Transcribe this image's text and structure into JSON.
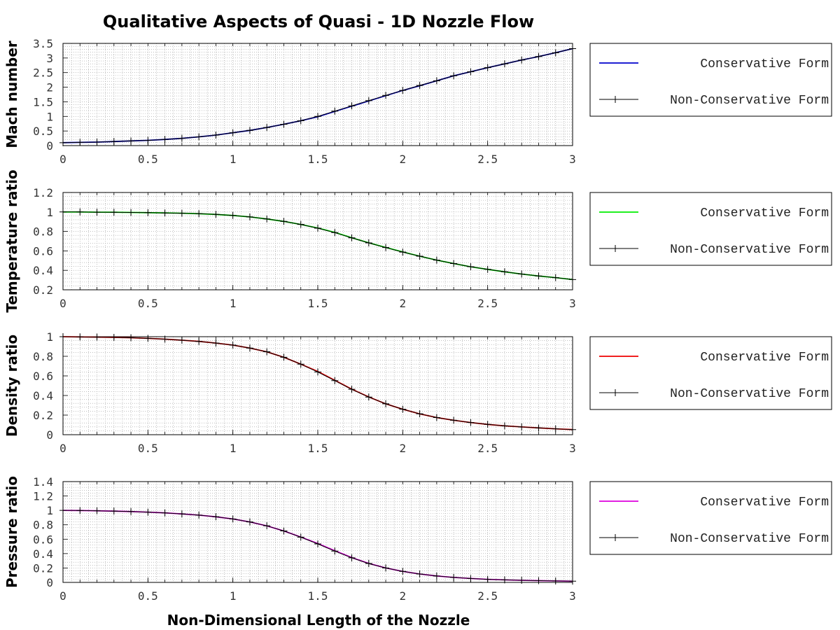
{
  "title": "Qualitative Aspects of Quasi - 1D Nozzle Flow",
  "xlabel": "Non-Dimensional Length of the Nozzle",
  "chart_data": [
    {
      "type": "line",
      "ylabel": "Mach number",
      "xlim": [
        0,
        3
      ],
      "ylim": [
        0,
        3.5
      ],
      "x_ticks": [
        "0",
        "0.5",
        "1",
        "1.5",
        "2",
        "2.5",
        "3"
      ],
      "y_ticks": [
        "0",
        "0.5",
        "1",
        "1.5",
        "2",
        "2.5",
        "3",
        "3.5"
      ],
      "grid": true,
      "legend_position": "right",
      "x": [
        0,
        0.1,
        0.2,
        0.3,
        0.4,
        0.5,
        0.6,
        0.7,
        0.8,
        0.9,
        1.0,
        1.1,
        1.2,
        1.3,
        1.4,
        1.5,
        1.6,
        1.7,
        1.8,
        1.9,
        2.0,
        2.1,
        2.2,
        2.3,
        2.4,
        2.5,
        2.6,
        2.7,
        2.8,
        2.9,
        3.0
      ],
      "series": [
        {
          "name": "Conservative Form",
          "color": "#0000cc",
          "marker": "none",
          "values": [
            0.1,
            0.11,
            0.12,
            0.14,
            0.16,
            0.18,
            0.21,
            0.25,
            0.3,
            0.36,
            0.44,
            0.52,
            0.62,
            0.73,
            0.85,
            0.99,
            1.17,
            1.35,
            1.53,
            1.71,
            1.89,
            2.05,
            2.22,
            2.39,
            2.53,
            2.67,
            2.8,
            2.93,
            3.05,
            3.18,
            3.32
          ]
        },
        {
          "name": "Non-Conservative Form",
          "color": "#000000",
          "marker": "plus",
          "values": [
            0.1,
            0.11,
            0.12,
            0.14,
            0.16,
            0.18,
            0.21,
            0.25,
            0.3,
            0.36,
            0.44,
            0.52,
            0.62,
            0.73,
            0.85,
            1.0,
            1.18,
            1.36,
            1.54,
            1.72,
            1.89,
            2.06,
            2.22,
            2.39,
            2.53,
            2.67,
            2.8,
            2.93,
            3.05,
            3.18,
            3.32
          ]
        }
      ]
    },
    {
      "type": "line",
      "ylabel": "Temperature ratio",
      "xlim": [
        0,
        3
      ],
      "ylim": [
        0.2,
        1.2
      ],
      "x_ticks": [
        "0",
        "0.5",
        "1",
        "1.5",
        "2",
        "2.5",
        "3"
      ],
      "y_ticks": [
        "0.2",
        "0.4",
        "0.6",
        "0.8",
        "1",
        "1.2"
      ],
      "grid": true,
      "legend_position": "right",
      "x": [
        0,
        0.1,
        0.2,
        0.3,
        0.4,
        0.5,
        0.6,
        0.7,
        0.8,
        0.9,
        1.0,
        1.1,
        1.2,
        1.3,
        1.4,
        1.5,
        1.6,
        1.7,
        1.8,
        1.9,
        2.0,
        2.1,
        2.2,
        2.3,
        2.4,
        2.5,
        2.6,
        2.7,
        2.8,
        2.9,
        3.0
      ],
      "series": [
        {
          "name": "Conservative Form",
          "color": "#00ee00",
          "marker": "none",
          "values": [
            1.0,
            1.0,
            0.998,
            0.997,
            0.995,
            0.993,
            0.99,
            0.987,
            0.982,
            0.975,
            0.964,
            0.949,
            0.928,
            0.903,
            0.872,
            0.835,
            0.79,
            0.735,
            0.683,
            0.635,
            0.589,
            0.545,
            0.505,
            0.47,
            0.437,
            0.41,
            0.385,
            0.362,
            0.342,
            0.325,
            0.305
          ]
        },
        {
          "name": "Non-Conservative Form",
          "color": "#000000",
          "marker": "plus",
          "values": [
            1.0,
            1.0,
            0.998,
            0.997,
            0.995,
            0.993,
            0.99,
            0.987,
            0.982,
            0.975,
            0.964,
            0.949,
            0.928,
            0.903,
            0.872,
            0.833,
            0.788,
            0.734,
            0.682,
            0.634,
            0.588,
            0.545,
            0.505,
            0.47,
            0.437,
            0.41,
            0.385,
            0.362,
            0.342,
            0.325,
            0.305
          ]
        }
      ]
    },
    {
      "type": "line",
      "ylabel": "Density ratio",
      "xlim": [
        0,
        3
      ],
      "ylim": [
        0,
        1
      ],
      "x_ticks": [
        "0",
        "0.5",
        "1",
        "1.5",
        "2",
        "2.5",
        "3"
      ],
      "y_ticks": [
        "0",
        "0.2",
        "0.4",
        "0.6",
        "0.8",
        "1"
      ],
      "grid": true,
      "legend_position": "right",
      "x": [
        0,
        0.1,
        0.2,
        0.3,
        0.4,
        0.5,
        0.6,
        0.7,
        0.8,
        0.9,
        1.0,
        1.1,
        1.2,
        1.3,
        1.4,
        1.5,
        1.6,
        1.7,
        1.8,
        1.9,
        2.0,
        2.1,
        2.2,
        2.3,
        2.4,
        2.5,
        2.6,
        2.7,
        2.8,
        2.9,
        3.0
      ],
      "series": [
        {
          "name": "Conservative Form",
          "color": "#ee0000",
          "marker": "none",
          "values": [
            1.0,
            0.998,
            0.996,
            0.993,
            0.989,
            0.983,
            0.975,
            0.964,
            0.952,
            0.935,
            0.914,
            0.884,
            0.846,
            0.79,
            0.72,
            0.645,
            0.555,
            0.465,
            0.385,
            0.315,
            0.26,
            0.213,
            0.175,
            0.147,
            0.124,
            0.105,
            0.09,
            0.079,
            0.069,
            0.06,
            0.052
          ]
        },
        {
          "name": "Non-Conservative Form",
          "color": "#000000",
          "marker": "plus",
          "values": [
            1.0,
            0.998,
            0.996,
            0.993,
            0.989,
            0.983,
            0.975,
            0.964,
            0.952,
            0.935,
            0.914,
            0.884,
            0.846,
            0.79,
            0.72,
            0.64,
            0.552,
            0.463,
            0.384,
            0.315,
            0.26,
            0.213,
            0.175,
            0.147,
            0.124,
            0.105,
            0.09,
            0.079,
            0.069,
            0.06,
            0.052
          ]
        }
      ]
    },
    {
      "type": "line",
      "ylabel": "Pressure ratio",
      "xlim": [
        0,
        3
      ],
      "ylim": [
        0,
        1.4
      ],
      "x_ticks": [
        "0",
        "0.5",
        "1",
        "1.5",
        "2",
        "2.5",
        "3"
      ],
      "y_ticks": [
        "0",
        "0.2",
        "0.4",
        "0.6",
        "0.8",
        "1",
        "1.2",
        "1.4"
      ],
      "grid": true,
      "legend_position": "right",
      "x": [
        0,
        0.1,
        0.2,
        0.3,
        0.4,
        0.5,
        0.6,
        0.7,
        0.8,
        0.9,
        1.0,
        1.1,
        1.2,
        1.3,
        1.4,
        1.5,
        1.6,
        1.7,
        1.8,
        1.9,
        2.0,
        2.1,
        2.2,
        2.3,
        2.4,
        2.5,
        2.6,
        2.7,
        2.8,
        2.9,
        3.0
      ],
      "series": [
        {
          "name": "Conservative Form",
          "color": "#dd00dd",
          "marker": "none",
          "values": [
            1.0,
            0.998,
            0.995,
            0.99,
            0.984,
            0.976,
            0.965,
            0.951,
            0.934,
            0.911,
            0.881,
            0.84,
            0.786,
            0.715,
            0.63,
            0.54,
            0.44,
            0.345,
            0.263,
            0.2,
            0.153,
            0.117,
            0.089,
            0.069,
            0.054,
            0.043,
            0.035,
            0.029,
            0.024,
            0.02,
            0.017
          ]
        },
        {
          "name": "Non-Conservative Form",
          "color": "#000000",
          "marker": "plus",
          "values": [
            1.0,
            0.998,
            0.995,
            0.99,
            0.984,
            0.976,
            0.965,
            0.951,
            0.934,
            0.911,
            0.881,
            0.84,
            0.786,
            0.715,
            0.628,
            0.535,
            0.435,
            0.342,
            0.262,
            0.2,
            0.153,
            0.117,
            0.089,
            0.069,
            0.054,
            0.043,
            0.035,
            0.029,
            0.024,
            0.02,
            0.017
          ]
        }
      ]
    }
  ]
}
